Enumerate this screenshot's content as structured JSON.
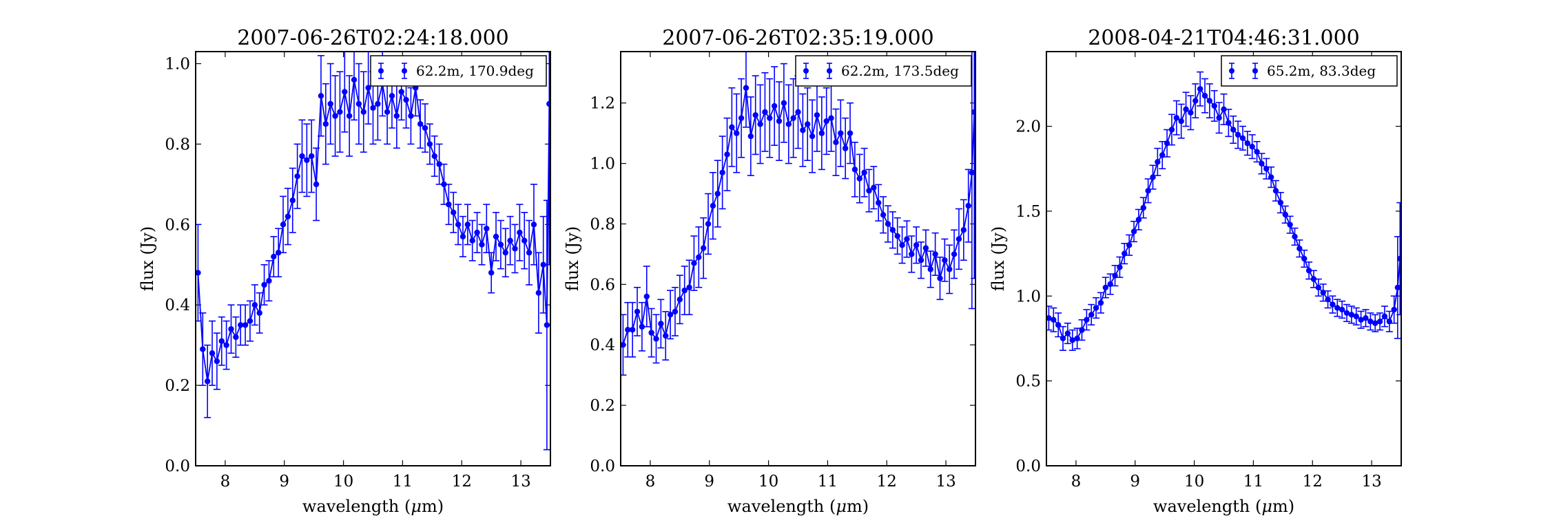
{
  "chart_data": [
    {
      "type": "scatter",
      "title": "2007-06-26T02:24:18.000",
      "xlabel": "wavelength (μm)",
      "ylabel": "flux (Jy)",
      "xlim": [
        7.5,
        13.5
      ],
      "ylim": [
        0.0,
        1.03
      ],
      "xticks": [
        8,
        9,
        10,
        11,
        12,
        13
      ],
      "yticks": [
        0.0,
        0.2,
        0.4,
        0.6,
        0.8,
        1.0
      ],
      "xtick_labels": [
        "8",
        "9",
        "10",
        "11",
        "12",
        "13"
      ],
      "ytick_labels": [
        "0.0",
        "0.2",
        "0.4",
        "0.6",
        "0.8",
        "1.0"
      ],
      "legend": {
        "loc": "upper right",
        "label": "62.2m, 170.9deg"
      },
      "color": "#0000ff",
      "series": [
        {
          "name": "62.2m, 170.9deg",
          "x": [
            7.54,
            7.62,
            7.7,
            7.78,
            7.86,
            7.94,
            8.02,
            8.1,
            8.18,
            8.26,
            8.34,
            8.42,
            8.5,
            8.58,
            8.66,
            8.74,
            8.82,
            8.9,
            8.98,
            9.06,
            9.14,
            9.22,
            9.3,
            9.38,
            9.46,
            9.54,
            9.62,
            9.7,
            9.78,
            9.86,
            9.94,
            10.02,
            10.1,
            10.18,
            10.26,
            10.34,
            10.42,
            10.5,
            10.58,
            10.66,
            10.74,
            10.82,
            10.9,
            10.98,
            11.06,
            11.14,
            11.22,
            11.3,
            11.38,
            11.46,
            11.54,
            11.62,
            11.7,
            11.78,
            11.86,
            11.94,
            12.02,
            12.1,
            12.18,
            12.26,
            12.34,
            12.42,
            12.5,
            12.58,
            12.66,
            12.74,
            12.82,
            12.9,
            12.98,
            13.06,
            13.14,
            13.22,
            13.3,
            13.38,
            13.44,
            13.48
          ],
          "y": [
            0.48,
            0.29,
            0.21,
            0.28,
            0.26,
            0.31,
            0.3,
            0.34,
            0.32,
            0.35,
            0.35,
            0.36,
            0.4,
            0.38,
            0.45,
            0.46,
            0.52,
            0.53,
            0.6,
            0.62,
            0.66,
            0.72,
            0.77,
            0.76,
            0.77,
            0.7,
            0.92,
            0.85,
            0.9,
            0.87,
            0.88,
            0.93,
            0.87,
            0.96,
            0.9,
            0.88,
            0.94,
            0.89,
            0.9,
            0.95,
            0.88,
            0.92,
            0.87,
            0.93,
            0.91,
            0.87,
            0.94,
            0.85,
            0.84,
            0.8,
            0.77,
            0.75,
            0.7,
            0.65,
            0.63,
            0.6,
            0.57,
            0.6,
            0.56,
            0.58,
            0.55,
            0.59,
            0.48,
            0.57,
            0.55,
            0.53,
            0.56,
            0.54,
            0.58,
            0.56,
            0.53,
            0.6,
            0.43,
            0.5,
            0.35,
            0.9
          ],
          "err": [
            0.12,
            0.09,
            0.09,
            0.08,
            0.07,
            0.06,
            0.06,
            0.06,
            0.05,
            0.05,
            0.05,
            0.05,
            0.05,
            0.05,
            0.05,
            0.05,
            0.05,
            0.06,
            0.07,
            0.07,
            0.08,
            0.08,
            0.09,
            0.09,
            0.09,
            0.09,
            0.1,
            0.1,
            0.1,
            0.1,
            0.1,
            0.1,
            0.1,
            0.1,
            0.1,
            0.1,
            0.09,
            0.09,
            0.09,
            0.08,
            0.08,
            0.08,
            0.08,
            0.07,
            0.07,
            0.07,
            0.07,
            0.06,
            0.06,
            0.05,
            0.05,
            0.05,
            0.05,
            0.05,
            0.05,
            0.05,
            0.05,
            0.05,
            0.05,
            0.05,
            0.05,
            0.06,
            0.05,
            0.06,
            0.06,
            0.06,
            0.06,
            0.06,
            0.07,
            0.07,
            0.08,
            0.1,
            0.1,
            0.12,
            0.31,
            0.4
          ]
        }
      ]
    },
    {
      "type": "scatter",
      "title": "2007-06-26T02:35:19.000",
      "xlabel": "wavelength (μm)",
      "ylabel": "flux (Jy)",
      "xlim": [
        7.5,
        13.5
      ],
      "ylim": [
        0.0,
        1.37
      ],
      "xticks": [
        8,
        9,
        10,
        11,
        12,
        13
      ],
      "yticks": [
        0.0,
        0.2,
        0.4,
        0.6,
        0.8,
        1.0,
        1.2
      ],
      "xtick_labels": [
        "8",
        "9",
        "10",
        "11",
        "12",
        "13"
      ],
      "ytick_labels": [
        "0.0",
        "0.2",
        "0.4",
        "0.6",
        "0.8",
        "1.0",
        "1.2"
      ],
      "legend": {
        "loc": "upper right",
        "label": "62.2m, 173.5deg"
      },
      "color": "#0000ff",
      "series": [
        {
          "name": "62.2m, 173.5deg",
          "x": [
            7.54,
            7.62,
            7.7,
            7.78,
            7.86,
            7.94,
            8.02,
            8.1,
            8.18,
            8.26,
            8.34,
            8.42,
            8.5,
            8.58,
            8.66,
            8.74,
            8.82,
            8.9,
            8.98,
            9.06,
            9.14,
            9.22,
            9.3,
            9.38,
            9.46,
            9.54,
            9.62,
            9.7,
            9.78,
            9.86,
            9.94,
            10.02,
            10.1,
            10.18,
            10.26,
            10.34,
            10.42,
            10.5,
            10.58,
            10.66,
            10.74,
            10.82,
            10.9,
            10.98,
            11.06,
            11.14,
            11.22,
            11.3,
            11.38,
            11.46,
            11.54,
            11.62,
            11.7,
            11.78,
            11.86,
            11.94,
            12.02,
            12.1,
            12.18,
            12.26,
            12.34,
            12.42,
            12.5,
            12.58,
            12.66,
            12.74,
            12.82,
            12.9,
            12.98,
            13.06,
            13.14,
            13.22,
            13.3,
            13.38,
            13.44,
            13.48
          ],
          "y": [
            0.4,
            0.45,
            0.45,
            0.51,
            0.46,
            0.56,
            0.44,
            0.42,
            0.47,
            0.43,
            0.5,
            0.51,
            0.55,
            0.58,
            0.59,
            0.67,
            0.69,
            0.72,
            0.8,
            0.86,
            0.9,
            0.97,
            1.03,
            1.12,
            1.1,
            1.15,
            1.25,
            1.09,
            1.16,
            1.13,
            1.17,
            1.15,
            1.19,
            1.14,
            1.2,
            1.13,
            1.15,
            1.17,
            1.11,
            1.13,
            1.09,
            1.16,
            1.1,
            1.14,
            1.15,
            1.07,
            1.1,
            1.05,
            1.1,
            0.98,
            0.95,
            0.97,
            0.91,
            0.92,
            0.87,
            0.83,
            0.8,
            0.78,
            0.76,
            0.73,
            0.75,
            0.7,
            0.73,
            0.68,
            0.72,
            0.65,
            0.7,
            0.62,
            0.68,
            0.65,
            0.7,
            0.75,
            0.78,
            0.86,
            0.97,
            1.17
          ],
          "err": [
            0.1,
            0.09,
            0.09,
            0.08,
            0.08,
            0.1,
            0.08,
            0.08,
            0.08,
            0.08,
            0.08,
            0.08,
            0.08,
            0.08,
            0.09,
            0.09,
            0.1,
            0.1,
            0.1,
            0.11,
            0.11,
            0.12,
            0.12,
            0.13,
            0.13,
            0.13,
            0.13,
            0.13,
            0.13,
            0.13,
            0.13,
            0.13,
            0.13,
            0.13,
            0.13,
            0.13,
            0.13,
            0.12,
            0.12,
            0.12,
            0.12,
            0.12,
            0.12,
            0.11,
            0.11,
            0.11,
            0.11,
            0.1,
            0.1,
            0.09,
            0.08,
            0.08,
            0.07,
            0.07,
            0.06,
            0.06,
            0.06,
            0.06,
            0.06,
            0.06,
            0.06,
            0.06,
            0.06,
            0.06,
            0.06,
            0.06,
            0.07,
            0.07,
            0.07,
            0.08,
            0.08,
            0.1,
            0.1,
            0.12,
            0.45,
            0.55
          ]
        }
      ]
    },
    {
      "type": "scatter",
      "title": "2008-04-21T04:46:31.000",
      "xlabel": "wavelength (μm)",
      "ylabel": "flux (Jy)",
      "xlim": [
        7.5,
        13.5
      ],
      "ylim": [
        0.0,
        2.44
      ],
      "xticks": [
        8,
        9,
        10,
        11,
        12,
        13
      ],
      "yticks": [
        0.0,
        0.5,
        1.0,
        1.5,
        2.0
      ],
      "xtick_labels": [
        "8",
        "9",
        "10",
        "11",
        "12",
        "13"
      ],
      "ytick_labels": [
        "0.0",
        "0.5",
        "1.0",
        "1.5",
        "2.0"
      ],
      "legend": {
        "loc": "upper right",
        "label": "65.2m, 83.3deg"
      },
      "color": "#0000ff",
      "series": [
        {
          "name": "65.2m, 83.3deg",
          "x": [
            7.54,
            7.62,
            7.7,
            7.78,
            7.86,
            7.94,
            8.02,
            8.1,
            8.18,
            8.26,
            8.34,
            8.42,
            8.5,
            8.58,
            8.66,
            8.74,
            8.82,
            8.9,
            8.98,
            9.06,
            9.14,
            9.22,
            9.3,
            9.38,
            9.46,
            9.54,
            9.62,
            9.7,
            9.78,
            9.86,
            9.94,
            10.02,
            10.1,
            10.18,
            10.26,
            10.34,
            10.42,
            10.5,
            10.58,
            10.66,
            10.74,
            10.82,
            10.9,
            10.98,
            11.06,
            11.14,
            11.22,
            11.3,
            11.38,
            11.46,
            11.54,
            11.62,
            11.7,
            11.78,
            11.86,
            11.94,
            12.02,
            12.1,
            12.18,
            12.26,
            12.34,
            12.42,
            12.5,
            12.58,
            12.66,
            12.74,
            12.82,
            12.9,
            12.98,
            13.06,
            13.14,
            13.22,
            13.3,
            13.38,
            13.44,
            13.48
          ],
          "y": [
            0.87,
            0.86,
            0.83,
            0.75,
            0.78,
            0.74,
            0.75,
            0.8,
            0.86,
            0.89,
            0.93,
            0.96,
            1.05,
            1.07,
            1.12,
            1.17,
            1.25,
            1.3,
            1.38,
            1.45,
            1.52,
            1.62,
            1.7,
            1.79,
            1.83,
            1.9,
            1.98,
            2.05,
            2.03,
            2.1,
            2.08,
            2.15,
            2.22,
            2.18,
            2.15,
            2.12,
            2.05,
            2.1,
            2.02,
            1.98,
            1.95,
            1.93,
            1.9,
            1.88,
            1.85,
            1.78,
            1.75,
            1.7,
            1.62,
            1.55,
            1.48,
            1.42,
            1.35,
            1.28,
            1.22,
            1.15,
            1.1,
            1.05,
            1.02,
            0.98,
            0.95,
            0.93,
            0.92,
            0.9,
            0.89,
            0.88,
            0.86,
            0.87,
            0.85,
            0.84,
            0.85,
            0.88,
            0.85,
            0.92,
            1.05,
            1.22
          ],
          "err": [
            0.07,
            0.07,
            0.07,
            0.07,
            0.06,
            0.06,
            0.06,
            0.06,
            0.06,
            0.06,
            0.06,
            0.06,
            0.06,
            0.06,
            0.06,
            0.06,
            0.06,
            0.06,
            0.06,
            0.06,
            0.06,
            0.07,
            0.07,
            0.08,
            0.08,
            0.08,
            0.09,
            0.1,
            0.1,
            0.1,
            0.1,
            0.1,
            0.1,
            0.1,
            0.1,
            0.09,
            0.09,
            0.09,
            0.08,
            0.08,
            0.08,
            0.07,
            0.07,
            0.07,
            0.06,
            0.06,
            0.06,
            0.06,
            0.06,
            0.06,
            0.05,
            0.05,
            0.05,
            0.05,
            0.05,
            0.05,
            0.05,
            0.05,
            0.05,
            0.05,
            0.05,
            0.05,
            0.05,
            0.05,
            0.05,
            0.05,
            0.05,
            0.05,
            0.05,
            0.05,
            0.05,
            0.06,
            0.06,
            0.08,
            0.3,
            0.33
          ]
        }
      ]
    }
  ]
}
